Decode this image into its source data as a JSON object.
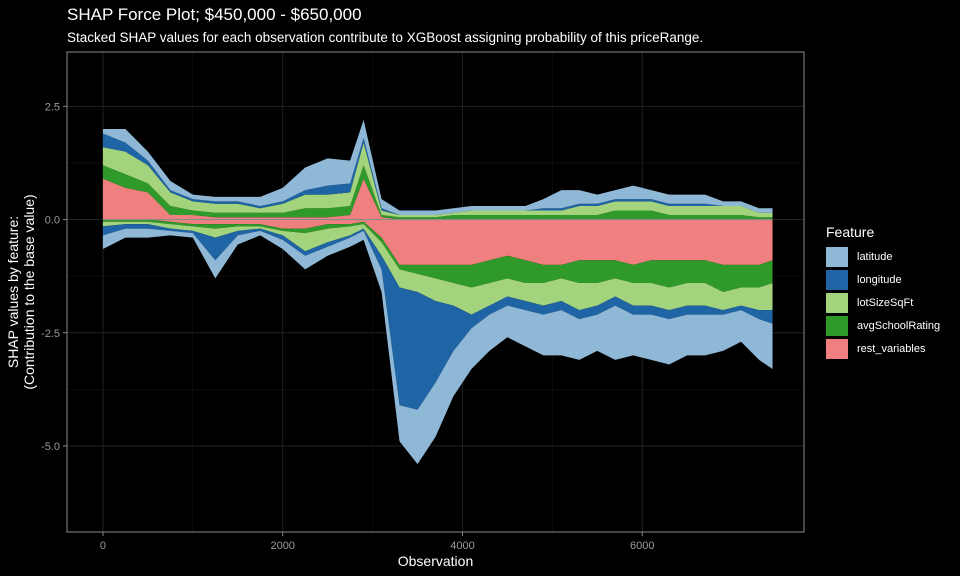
{
  "title": "SHAP Force Plot; $450,000 - $650,000",
  "subtitle": "Stacked SHAP values for each observation contribute to XGBoost assigning probability of this priceRange.",
  "legend": {
    "title": "Feature",
    "items": [
      {
        "label": "latitude",
        "color": "#8fb8d6"
      },
      {
        "label": "longitude",
        "color": "#1f65a6"
      },
      {
        "label": "lotSizeSqFt",
        "color": "#a3d37c"
      },
      {
        "label": "avgSchoolRating",
        "color": "#2f9a2a"
      },
      {
        "label": "rest_variables",
        "color": "#f08080"
      }
    ]
  },
  "chart_data": {
    "type": "area",
    "title": "SHAP Force Plot; $450,000 - $650,000",
    "subtitle": "Stacked SHAP values for each observation contribute to XGBoost assigning probability of this priceRange.",
    "xlabel": "Observation",
    "ylabel": "SHAP values by feature:\n(Contribution to the base value)",
    "xlim": [
      -400,
      7800
    ],
    "ylim": [
      -6.9,
      3.7
    ],
    "xticks": [
      0,
      2000,
      4000,
      6000
    ],
    "yticks": [
      -5.0,
      -2.5,
      0.0,
      2.5
    ],
    "ytick_labels": [
      "-5.0",
      "-2.5",
      "0.0",
      "2.5"
    ],
    "grid": true,
    "legend_position": "right",
    "x": [
      0,
      250,
      500,
      750,
      1000,
      1250,
      1500,
      1750,
      2000,
      2250,
      2500,
      2750,
      2900,
      3100,
      3300,
      3500,
      3700,
      3900,
      4100,
      4300,
      4500,
      4700,
      4900,
      5100,
      5300,
      5500,
      5700,
      5900,
      6100,
      6300,
      6500,
      6700,
      6900,
      7100,
      7300,
      7450
    ],
    "series": [
      {
        "name": "latitude",
        "positive": [
          0.1,
          0.3,
          0.2,
          0.2,
          0.1,
          0.1,
          0.1,
          0.2,
          0.3,
          0.5,
          0.6,
          0.5,
          0.4,
          0.2,
          0.1,
          0.1,
          0.1,
          0.1,
          0.1,
          0.1,
          0.1,
          0.1,
          0.2,
          0.4,
          0.3,
          0.2,
          0.2,
          0.3,
          0.2,
          0.2,
          0.2,
          0.2,
          0.1,
          0.1,
          0.1,
          0.1
        ],
        "negative": [
          -0.3,
          -0.2,
          -0.2,
          -0.1,
          -0.1,
          -0.4,
          -0.2,
          -0.1,
          -0.2,
          -0.3,
          -0.2,
          -0.2,
          -0.2,
          -0.5,
          -0.8,
          -1.2,
          -1.2,
          -1.0,
          -0.9,
          -0.8,
          -0.7,
          -0.8,
          -0.9,
          -1.0,
          -0.9,
          -0.8,
          -1.2,
          -0.9,
          -1.0,
          -1.0,
          -0.9,
          -0.9,
          -0.8,
          -0.7,
          -0.9,
          -1.0
        ]
      },
      {
        "name": "longitude",
        "positive": [
          0.3,
          0.2,
          0.1,
          0.05,
          0.05,
          0.05,
          0.05,
          0.05,
          0.05,
          0.1,
          0.2,
          0.2,
          0.1,
          0.05,
          0,
          0,
          0,
          0,
          0,
          0,
          0,
          0,
          0.05,
          0.05,
          0.05,
          0.05,
          0.05,
          0.05,
          0.05,
          0.05,
          0.05,
          0.05,
          0,
          0,
          0,
          0
        ],
        "negative": [
          -0.2,
          -0.1,
          -0.1,
          -0.05,
          -0.05,
          -0.5,
          -0.1,
          -0.05,
          -0.1,
          -0.1,
          -0.1,
          -0.05,
          -0.05,
          -0.3,
          -2.6,
          -2.6,
          -1.8,
          -1.0,
          -0.3,
          -0.2,
          -0.2,
          -0.2,
          -0.2,
          -0.2,
          -0.2,
          -0.2,
          -0.2,
          -0.2,
          -0.2,
          -0.2,
          -0.2,
          -0.2,
          -0.1,
          -0.1,
          -0.2,
          -0.3
        ]
      },
      {
        "name": "lotSizeSqFt",
        "positive": [
          0.4,
          0.5,
          0.4,
          0.3,
          0.2,
          0.2,
          0.2,
          0.1,
          0.2,
          0.3,
          0.3,
          0.3,
          0.5,
          0.1,
          0.05,
          0.05,
          0.05,
          0.05,
          0.1,
          0.1,
          0.1,
          0.1,
          0.1,
          0.1,
          0.2,
          0.2,
          0.2,
          0.2,
          0.2,
          0.2,
          0.2,
          0.2,
          0.2,
          0.2,
          0.1,
          0.1
        ],
        "negative": [
          -0.1,
          -0.05,
          -0.05,
          -0.1,
          -0.1,
          -0.2,
          -0.1,
          -0.05,
          -0.1,
          -0.4,
          -0.3,
          -0.2,
          -0.1,
          -0.3,
          -0.4,
          -0.4,
          -0.5,
          -0.5,
          -0.6,
          -0.5,
          -0.4,
          -0.4,
          -0.5,
          -0.5,
          -0.6,
          -0.5,
          -0.4,
          -0.5,
          -0.5,
          -0.5,
          -0.5,
          -0.5,
          -0.4,
          -0.4,
          -0.5,
          -0.6
        ]
      },
      {
        "name": "avgSchoolRating",
        "positive": [
          0.3,
          0.3,
          0.2,
          0.2,
          0.1,
          0.1,
          0.1,
          0.1,
          0.1,
          0.2,
          0.2,
          0.2,
          0.3,
          0.05,
          0.05,
          0.05,
          0.05,
          0.1,
          0.1,
          0.1,
          0.1,
          0.1,
          0.1,
          0.1,
          0.1,
          0.1,
          0.2,
          0.2,
          0.2,
          0.1,
          0.1,
          0.1,
          0.1,
          0.1,
          0.05,
          0.05
        ],
        "negative": [
          -0.05,
          -0.05,
          -0.05,
          -0.05,
          -0.05,
          -0.1,
          -0.05,
          -0.05,
          -0.05,
          -0.1,
          -0.1,
          -0.05,
          -0.05,
          -0.1,
          -0.1,
          -0.2,
          -0.3,
          -0.4,
          -0.5,
          -0.5,
          -0.5,
          -0.5,
          -0.4,
          -0.3,
          -0.5,
          -0.5,
          -0.4,
          -0.4,
          -0.5,
          -0.6,
          -0.5,
          -0.5,
          -0.6,
          -0.5,
          -0.5,
          -0.5
        ]
      },
      {
        "name": "rest_variables",
        "positive": [
          0.9,
          0.7,
          0.6,
          0.1,
          0.1,
          0.05,
          0.05,
          0.05,
          0.05,
          0.05,
          0.05,
          0.1,
          0.9,
          0.05,
          0,
          0,
          0,
          0,
          0,
          0,
          0,
          0,
          0,
          0,
          0,
          0,
          0,
          0,
          0,
          0,
          0,
          0,
          0,
          0,
          0,
          0
        ],
        "negative": [
          0,
          0,
          0,
          -0.05,
          -0.1,
          -0.1,
          -0.1,
          -0.1,
          -0.2,
          -0.2,
          -0.1,
          -0.1,
          -0.05,
          -0.4,
          -1.0,
          -1.0,
          -1.0,
          -1.0,
          -1.0,
          -0.9,
          -0.8,
          -0.9,
          -1.0,
          -1.0,
          -0.9,
          -0.9,
          -0.9,
          -1.0,
          -0.9,
          -0.9,
          -0.9,
          -0.9,
          -1.0,
          -1.0,
          -1.0,
          -0.9
        ]
      }
    ]
  }
}
